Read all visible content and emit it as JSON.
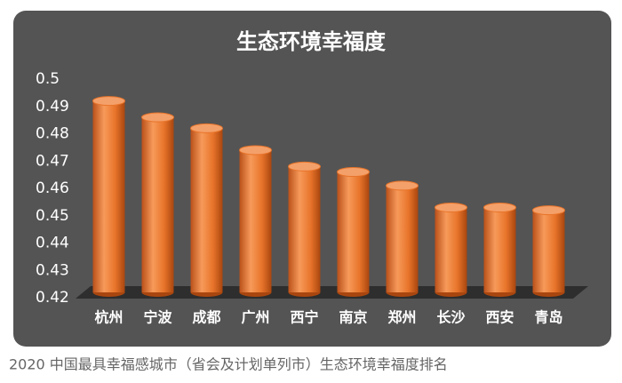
{
  "chart_data": {
    "type": "bar",
    "title": "生态环境幸福度",
    "caption": "2020 中国最具幸福感城市（省会及计划单列市）生态环境幸福度排名",
    "categories": [
      "杭州",
      "宁波",
      "成都",
      "广州",
      "西宁",
      "南京",
      "郑州",
      "长沙",
      "西安",
      "青岛"
    ],
    "values": [
      0.492,
      0.486,
      0.482,
      0.474,
      0.468,
      0.466,
      0.461,
      0.453,
      0.453,
      0.452
    ],
    "color": "#e8742a",
    "ylim": [
      0.42,
      0.5
    ],
    "yticks": [
      0.42,
      0.43,
      0.44,
      0.45,
      0.46,
      0.47,
      0.48,
      0.49,
      0.5
    ]
  }
}
